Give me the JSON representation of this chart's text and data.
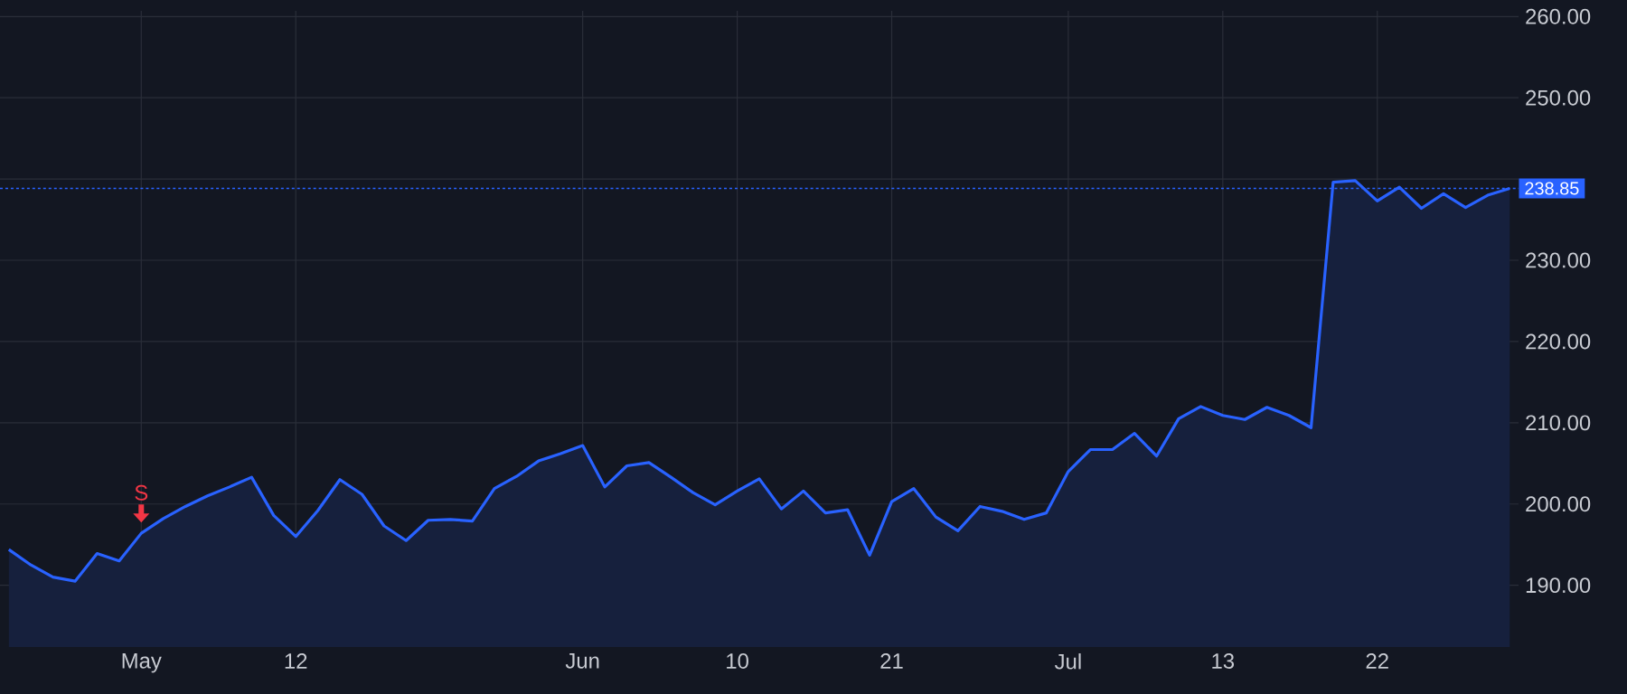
{
  "chart_data": {
    "type": "area",
    "categories": [
      null,
      null,
      null,
      null,
      null,
      null,
      "May",
      null,
      null,
      null,
      null,
      null,
      null,
      "12",
      null,
      null,
      null,
      null,
      null,
      null,
      null,
      null,
      null,
      null,
      null,
      null,
      "Jun",
      null,
      null,
      null,
      null,
      null,
      null,
      "10",
      null,
      null,
      null,
      null,
      null,
      null,
      "21",
      null,
      null,
      null,
      null,
      null,
      null,
      null,
      "Jul",
      null,
      null,
      null,
      null,
      null,
      null,
      "13",
      null,
      null,
      null,
      null,
      null,
      null,
      "22",
      null,
      null,
      null,
      null,
      null,
      null
    ],
    "series": [
      {
        "color": "#2962ff",
        "values": [
          194.4,
          192.5,
          191.0,
          190.5,
          193.9,
          193.0,
          196.4,
          198.2,
          199.7,
          201.0,
          202.1,
          203.3,
          198.6,
          196.0,
          199.2,
          203.0,
          201.2,
          197.3,
          195.5,
          198.0,
          198.1,
          197.9,
          201.9,
          203.4,
          205.3,
          206.2,
          207.2,
          202.1,
          204.7,
          205.1,
          203.3,
          201.4,
          199.9,
          201.6,
          203.1,
          199.4,
          201.6,
          198.9,
          199.3,
          193.7,
          200.3,
          201.9,
          198.4,
          196.7,
          199.7,
          199.1,
          198.1,
          198.9,
          204.0,
          206.7,
          206.7,
          208.7,
          205.9,
          210.5,
          212.0,
          210.9,
          210.4,
          211.9,
          210.9,
          209.4,
          239.6,
          239.8,
          237.3,
          239.0,
          236.4,
          238.2,
          236.5,
          238.0,
          238.85
        ]
      }
    ],
    "ylim": [
      182.4,
      260.7
    ],
    "yticks": [
      {
        "value": 190,
        "label": "190.00"
      },
      {
        "value": 200,
        "label": "200.00"
      },
      {
        "value": 210,
        "label": "210.00"
      },
      {
        "value": 220,
        "label": "220.00"
      },
      {
        "value": 230,
        "label": "230.00"
      },
      {
        "value": 240,
        "label": null
      },
      {
        "value": 250,
        "label": "250.00"
      },
      {
        "value": 260,
        "label": "260.00"
      }
    ],
    "grid": true,
    "ref_lines": [
      {
        "axis": "y",
        "value": 238.85,
        "label": "238.85",
        "color": "#2962ff",
        "line_style": "dotted"
      }
    ],
    "annotations": [
      {
        "text": "S",
        "x": "May",
        "y": 196.4
      }
    ]
  }
}
